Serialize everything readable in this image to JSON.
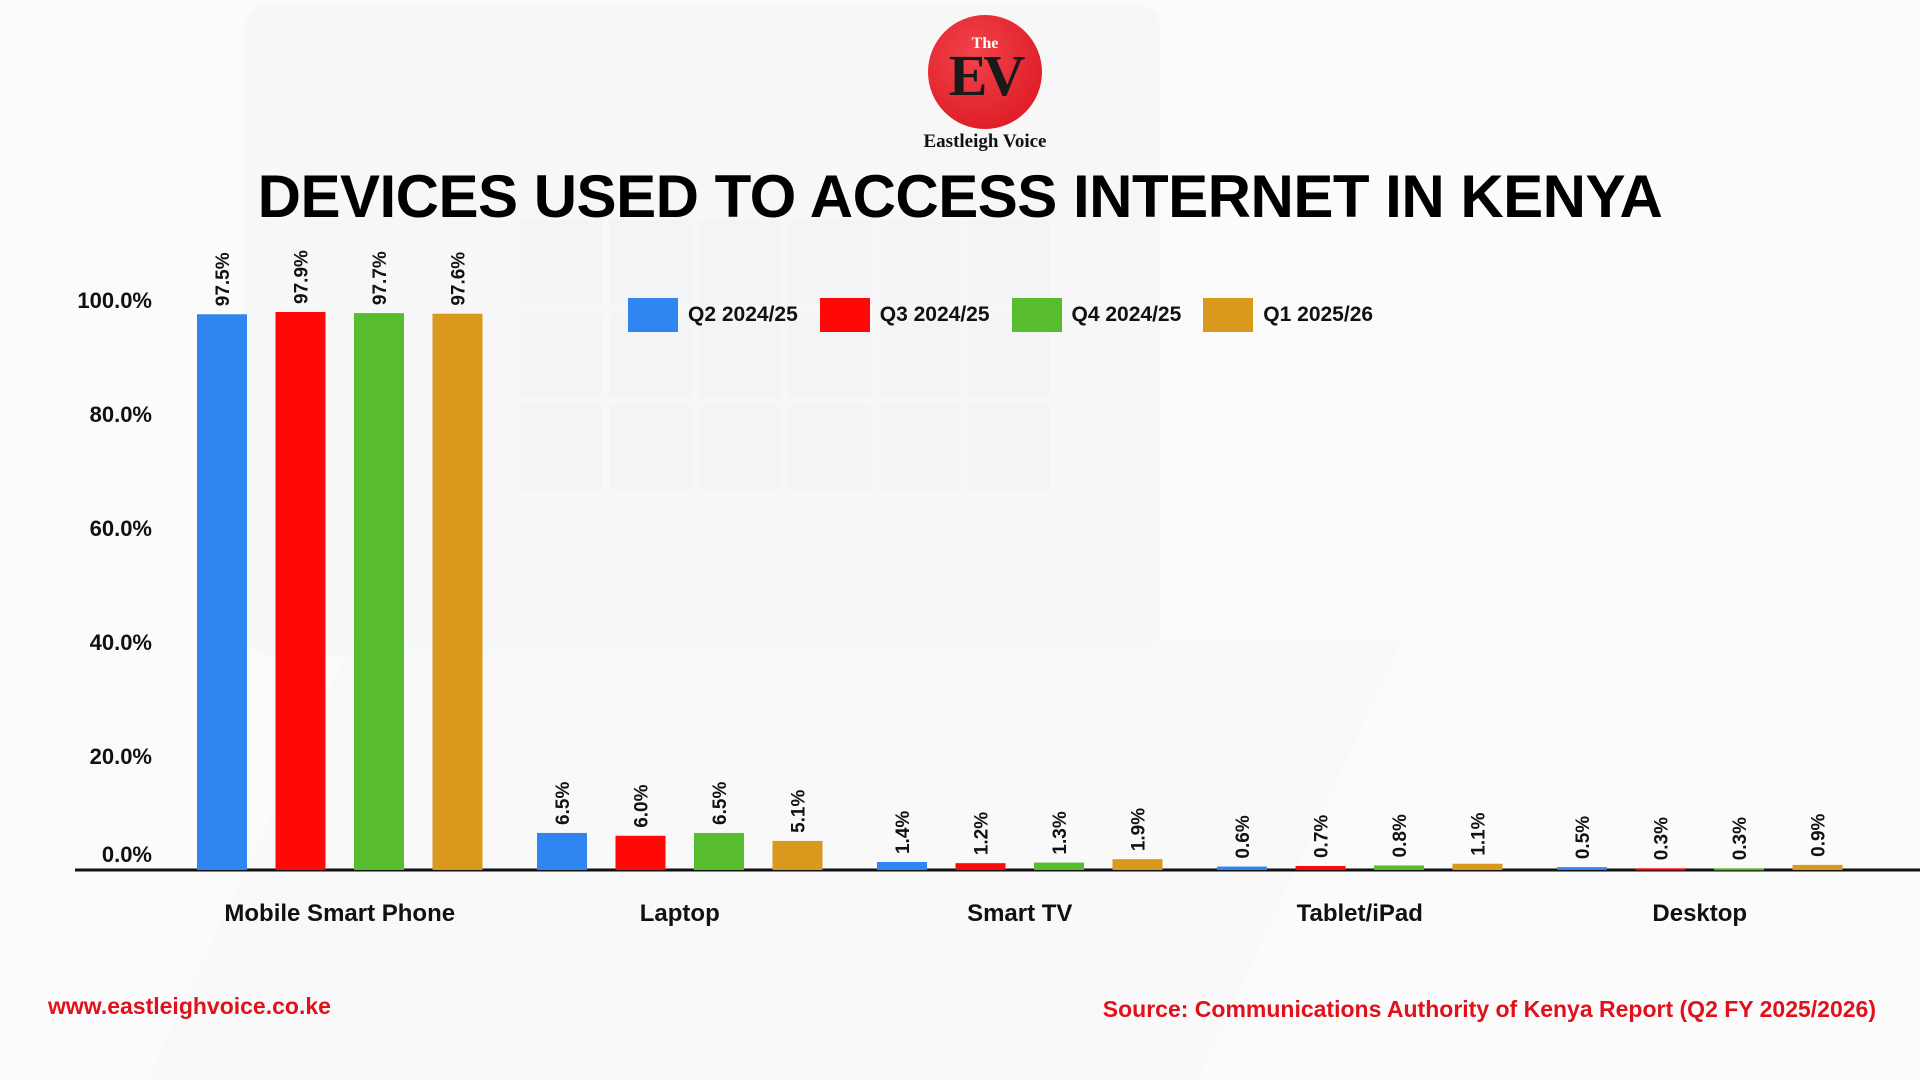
{
  "brand": {
    "logo_the": "The",
    "logo_mark": "EV",
    "name": "Eastleigh Voice"
  },
  "colors": {
    "q2": "#2f86f0",
    "q3": "#fe0808",
    "q4": "#57bd2e",
    "q1": "#d9991d",
    "footer_text": "#e0111b"
  },
  "footer": {
    "website": "www.eastleighvoice.co.ke",
    "source": "Source: Communications Authority of Kenya Report (Q2 FY 2025/2026)"
  },
  "chart_data": {
    "type": "bar",
    "title": "DEVICES USED TO ACCESS INTERNET IN KENYA",
    "categories": [
      "Mobile Smart Phone",
      "Laptop",
      "Smart TV",
      "Tablet/iPad",
      "Desktop"
    ],
    "series": [
      {
        "name": "Q2 2024/25",
        "color": "#2f86f0",
        "values": [
          97.5,
          6.5,
          1.4,
          0.6,
          0.5
        ],
        "labels": [
          "97.5%",
          "6.5%",
          "1.4%",
          "0.6%",
          "0.5%"
        ]
      },
      {
        "name": "Q3 2024/25",
        "color": "#fe0808",
        "values": [
          97.9,
          6.0,
          1.2,
          0.7,
          0.3
        ],
        "labels": [
          "97.9%",
          "6.0%",
          "1.2%",
          "0.7%",
          "0.3%"
        ]
      },
      {
        "name": "Q4 2024/25",
        "color": "#57bd2e",
        "values": [
          97.7,
          6.5,
          1.3,
          0.8,
          0.3
        ],
        "labels": [
          "97.7%",
          "6.5%",
          "1.3%",
          "0.8%",
          "0.3%"
        ]
      },
      {
        "name": "Q1 2025/26",
        "color": "#d9991d",
        "values": [
          97.6,
          5.1,
          1.9,
          1.1,
          0.9
        ],
        "labels": [
          "97.6%",
          "5.1%",
          "1.9%",
          "1.1%",
          "0.9%"
        ]
      }
    ],
    "yticks": [
      "0.0%",
      "20.0%",
      "40.0%",
      "60.0%",
      "80.0%",
      "100.0%"
    ],
    "ylim": [
      0,
      100
    ],
    "legend_position": "top",
    "grid": false
  }
}
